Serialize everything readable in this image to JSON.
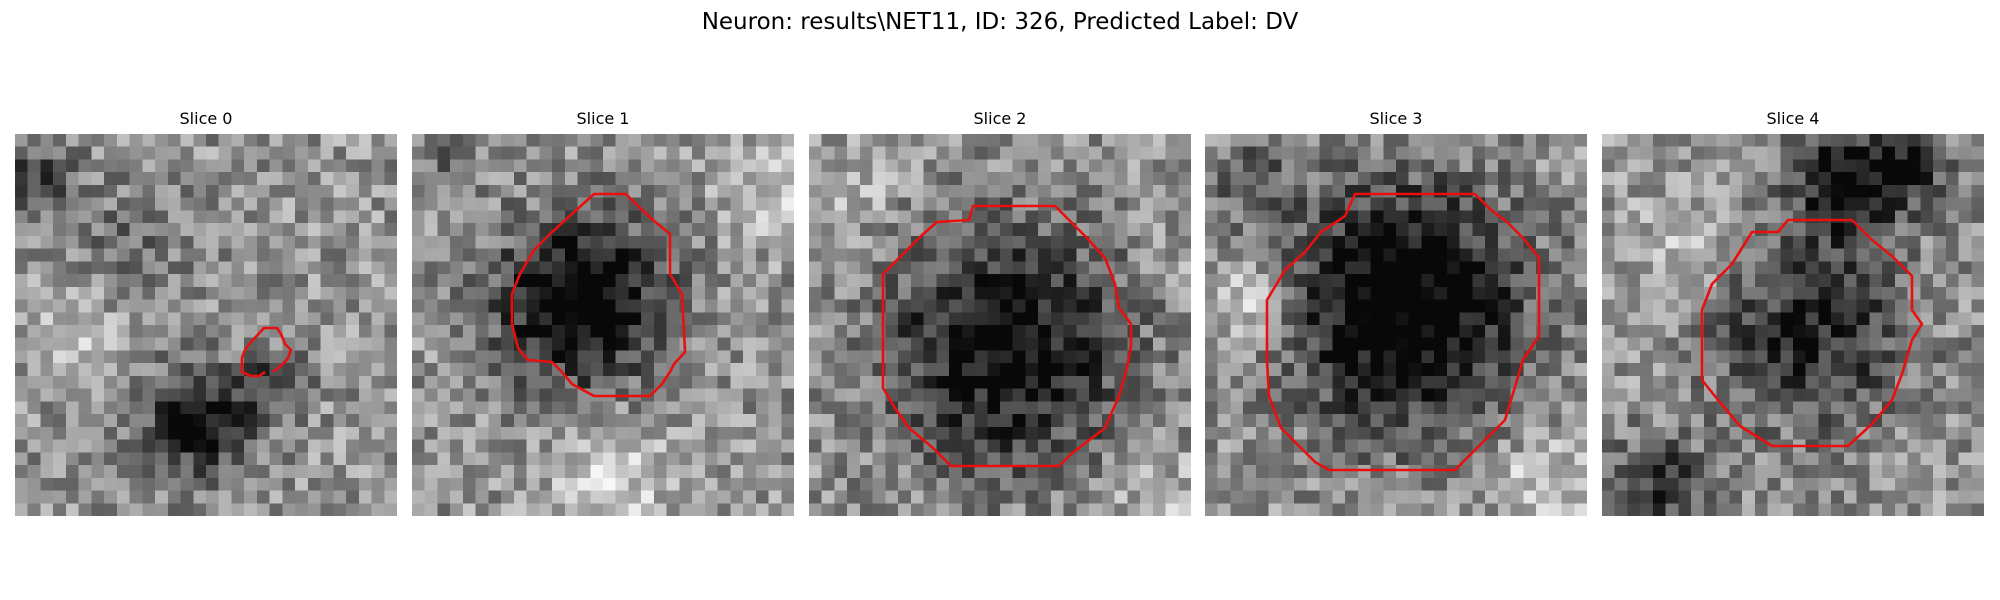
{
  "figure": {
    "title": "Neuron: results\\NET11, ID: 326, Predicted Label: DV",
    "contour_color": "#e8100f",
    "colormap": "gray",
    "panels": [
      {
        "title": "Slice 0"
      },
      {
        "title": "Slice 1"
      },
      {
        "title": "Slice 2"
      },
      {
        "title": "Slice 3"
      },
      {
        "title": "Slice 4"
      }
    ]
  }
}
